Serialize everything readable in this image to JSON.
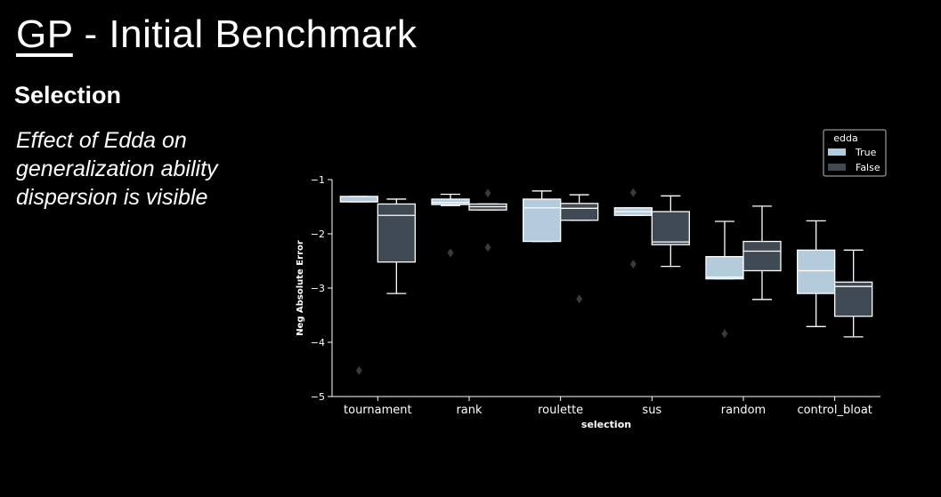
{
  "slide": {
    "title_prefix": "GP",
    "title_rest": " - Initial Benchmark",
    "subtitle": "Selection",
    "description_lines": [
      "Effect of Edda on",
      "generalization ability",
      "dispersion is visible"
    ]
  },
  "chart_data": {
    "type": "box",
    "xlabel": "selection",
    "ylabel": "Neg Absolute Error",
    "categories": [
      "tournament",
      "rank",
      "roulette",
      "sus",
      "random",
      "control_bloat"
    ],
    "ylim": [
      -5,
      -1
    ],
    "yticks": [
      -5,
      -4,
      -3,
      -2,
      -1
    ],
    "ytick_labels": [
      "−5",
      "−4",
      "−3",
      "−2",
      "−1"
    ],
    "legend": {
      "title": "edda",
      "placement": "top-right"
    },
    "series": [
      {
        "name": "True",
        "color": "#b4cbdc",
        "boxes": [
          {
            "whisker_low": -1.41,
            "q1": -1.41,
            "median": -1.41,
            "q3": -1.31,
            "whisker_high": -1.31,
            "outliers": [
              -4.52
            ]
          },
          {
            "whisker_low": -1.48,
            "q1": -1.46,
            "median": -1.42,
            "q3": -1.36,
            "whisker_high": -1.27,
            "outliers": [
              -2.35
            ]
          },
          {
            "whisker_low": -2.14,
            "q1": -2.14,
            "median": -1.52,
            "q3": -1.36,
            "whisker_high": -1.21,
            "outliers": []
          },
          {
            "whisker_low": -1.66,
            "q1": -1.66,
            "median": -1.59,
            "q3": -1.52,
            "whisker_high": -1.52,
            "outliers": [
              -1.24,
              -2.56
            ]
          },
          {
            "whisker_low": -2.83,
            "q1": -2.83,
            "median": -2.8,
            "q3": -2.42,
            "whisker_high": -1.77,
            "outliers": [
              -3.84
            ]
          },
          {
            "whisker_low": -3.71,
            "q1": -3.1,
            "median": -2.68,
            "q3": -2.3,
            "whisker_high": -1.76,
            "outliers": []
          }
        ]
      },
      {
        "name": "False",
        "color": "#3f4a54",
        "boxes": [
          {
            "whisker_low": -3.1,
            "q1": -2.52,
            "median": -1.66,
            "q3": -1.45,
            "whisker_high": -1.36,
            "outliers": []
          },
          {
            "whisker_low": -1.56,
            "q1": -1.56,
            "median": -1.5,
            "q3": -1.45,
            "whisker_high": -1.45,
            "outliers": [
              -1.25,
              -2.25
            ]
          },
          {
            "whisker_low": -1.75,
            "q1": -1.75,
            "median": -1.53,
            "q3": -1.44,
            "whisker_high": -1.28,
            "outliers": [
              -3.2
            ]
          },
          {
            "whisker_low": -2.6,
            "q1": -2.2,
            "median": -2.15,
            "q3": -1.59,
            "whisker_high": -1.3,
            "outliers": []
          },
          {
            "whisker_low": -3.21,
            "q1": -2.68,
            "median": -2.32,
            "q3": -2.14,
            "whisker_high": -1.49,
            "outliers": []
          },
          {
            "whisker_low": -3.9,
            "q1": -3.52,
            "median": -2.97,
            "q3": -2.89,
            "whisker_high": -2.3,
            "outliers": []
          }
        ]
      }
    ]
  }
}
